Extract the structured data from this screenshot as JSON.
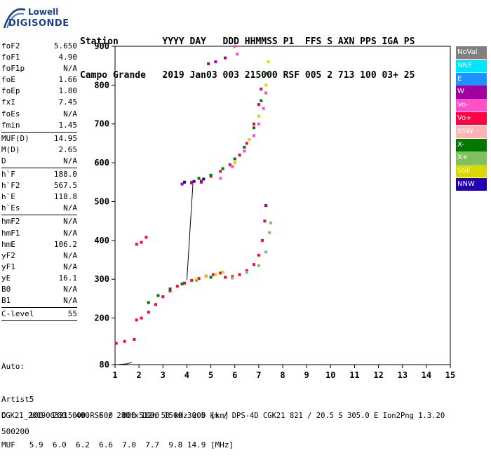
{
  "logo": {
    "line1": "Lowell",
    "line2": "DIGISONDE"
  },
  "header": {
    "line1": "Station        YYYY DAY   DDD HHMMSS P1  FFS S AXN PPS IGA PS",
    "line2": "Campo Grande   2019 Jan03 003 215000 RSF 005 2 713 100 03+ 25"
  },
  "params": [
    {
      "name": "foF2",
      "value": "5.650"
    },
    {
      "name": "foF1",
      "value": "4.90"
    },
    {
      "name": "foF1p",
      "value": "N/A"
    },
    {
      "name": "foE",
      "value": "1.66"
    },
    {
      "name": "foEp",
      "value": "1.80"
    },
    {
      "name": "fxI",
      "value": "7.45"
    },
    {
      "name": "foEs",
      "value": "N/A"
    },
    {
      "name": "fmin",
      "value": "1.45"
    },
    {
      "sep": true
    },
    {
      "name": "MUF(D)",
      "value": "14.95"
    },
    {
      "name": "M(D)",
      "value": "2.65"
    },
    {
      "name": "D",
      "value": "N/A"
    },
    {
      "sep": true
    },
    {
      "name": "h`F",
      "value": "188.0"
    },
    {
      "name": "h`F2",
      "value": "567.5"
    },
    {
      "name": "h`E",
      "value": "118.8"
    },
    {
      "name": "h`Es",
      "value": "N/A"
    },
    {
      "sep": true
    },
    {
      "name": "hmF2",
      "value": "N/A"
    },
    {
      "name": "hmF1",
      "value": "N/A"
    },
    {
      "name": "hmE",
      "value": "106.2"
    },
    {
      "name": "yF2",
      "value": "N/A"
    },
    {
      "name": "yF1",
      "value": "N/A"
    },
    {
      "name": "yE",
      "value": "16.1"
    },
    {
      "name": "B0",
      "value": "N/A"
    },
    {
      "name": "B1",
      "value": "N/A"
    },
    {
      "sep": true
    },
    {
      "name": "C-level",
      "value": "55"
    },
    {
      "sep": true
    }
  ],
  "auto": {
    "line1": "Auto:",
    "line2": "Artist5",
    "line3": "500200"
  },
  "legend": [
    {
      "label": "NoVal",
      "color": "#808080"
    },
    {
      "label": "NNE",
      "color": "#00e5ff"
    },
    {
      "label": "E",
      "color": "#1e90ff"
    },
    {
      "label": "W",
      "color": "#a000a0"
    },
    {
      "label": "Vo-",
      "color": "#ff50c8"
    },
    {
      "label": "Vo+",
      "color": "#ff0040"
    },
    {
      "label": "SSW",
      "color": "#ffb4b4"
    },
    {
      "label": "X-",
      "color": "#007800"
    },
    {
      "label": "X+",
      "color": "#80c060"
    },
    {
      "label": "SSE",
      "color": "#d8d800"
    },
    {
      "label": "NNW",
      "color": "#2000b0"
    }
  ],
  "dtable": {
    "d_row": "D     100  200  400  600  800 1000 1500 3000 [km]",
    "muf_row": "MUF   5.9  6.0  6.2  6.6  7.0  7.7  9.8 14.9 [MHz]"
  },
  "footer": "CGK21_2019003215000.RSF / 280fx512h 50 kHz 2.5 km / DPS-4D CGK21 821 / 20.5 S 305.0 E Ion2Png 1.3.20",
  "chart_data": {
    "type": "scatter",
    "xlim": [
      1,
      15
    ],
    "ylim": [
      80,
      900
    ],
    "x_ticks": [
      "1",
      "2",
      "3",
      "4",
      "5",
      "6",
      "7",
      "8",
      "9",
      "10",
      "11",
      "12",
      "13",
      "14",
      "15"
    ],
    "y_ticks": [
      "80",
      "200",
      "300",
      "400",
      "500",
      "600",
      "700",
      "800",
      "900"
    ],
    "series": [
      {
        "name": "Vo+",
        "color": "#ff0040",
        "points": [
          [
            1.9,
            195
          ],
          [
            2.1,
            200
          ],
          [
            2.4,
            215
          ],
          [
            2.7,
            235
          ],
          [
            3.0,
            255
          ],
          [
            3.3,
            270
          ],
          [
            3.6,
            282
          ],
          [
            3.9,
            290
          ],
          [
            4.2,
            297
          ],
          [
            4.5,
            302
          ],
          [
            4.8,
            308
          ],
          [
            5.1,
            312
          ],
          [
            5.4,
            316
          ],
          [
            5.6,
            305
          ],
          [
            5.9,
            307
          ],
          [
            6.2,
            312
          ],
          [
            6.5,
            322
          ],
          [
            6.8,
            338
          ],
          [
            7.0,
            362
          ],
          [
            7.15,
            400
          ],
          [
            7.25,
            450
          ],
          [
            4.2,
            550
          ],
          [
            4.6,
            553
          ],
          [
            5.0,
            565
          ],
          [
            5.4,
            578
          ],
          [
            5.8,
            595
          ],
          [
            6.2,
            620
          ],
          [
            6.5,
            650
          ],
          [
            6.8,
            700
          ],
          [
            7.0,
            750
          ],
          [
            7.1,
            790
          ]
        ]
      },
      {
        "name": "X-",
        "color": "#007800",
        "points": [
          [
            2.4,
            240
          ],
          [
            2.8,
            258
          ],
          [
            3.3,
            275
          ],
          [
            3.8,
            288
          ],
          [
            4.4,
            298
          ],
          [
            5.0,
            305
          ],
          [
            4.5,
            560
          ],
          [
            5.0,
            568
          ],
          [
            5.5,
            585
          ],
          [
            6.0,
            610
          ],
          [
            6.4,
            640
          ],
          [
            6.8,
            690
          ],
          [
            7.1,
            760
          ],
          [
            7.3,
            830
          ]
        ]
      },
      {
        "name": "X+",
        "color": "#80c060",
        "points": [
          [
            5.9,
            303
          ],
          [
            6.5,
            318
          ],
          [
            7.0,
            335
          ],
          [
            7.3,
            370
          ],
          [
            7.45,
            420
          ],
          [
            7.5,
            445
          ]
        ]
      },
      {
        "name": "SSE",
        "color": "#d8d800",
        "points": [
          [
            4.4,
            300
          ],
          [
            4.8,
            307
          ],
          [
            5.2,
            312
          ],
          [
            5.5,
            318
          ],
          [
            6.0,
            600
          ],
          [
            6.6,
            660
          ],
          [
            7.0,
            720
          ],
          [
            7.3,
            800
          ],
          [
            7.4,
            860
          ]
        ]
      },
      {
        "name": "Vo-",
        "color": "#ff50c8",
        "points": [
          [
            5.4,
            560
          ],
          [
            5.9,
            590
          ],
          [
            6.4,
            630
          ],
          [
            6.8,
            670
          ],
          [
            7.0,
            700
          ],
          [
            7.2,
            740
          ],
          [
            7.3,
            780
          ],
          [
            6.0,
            900
          ],
          [
            6.1,
            880
          ]
        ]
      },
      {
        "name": "W",
        "color": "#a000a0",
        "points": [
          [
            3.8,
            545
          ],
          [
            4.2,
            548
          ],
          [
            4.6,
            550
          ],
          [
            7.3,
            490
          ],
          [
            4.9,
            855
          ],
          [
            5.2,
            860
          ],
          [
            5.6,
            870
          ]
        ]
      },
      {
        "name": "NNW",
        "color": "#2000b0",
        "points": [
          [
            3.9,
            550
          ],
          [
            4.3,
            552
          ],
          [
            4.7,
            558
          ]
        ]
      },
      {
        "name": "Vo+ (Es)",
        "color": "#ff0040",
        "points": [
          [
            1.05,
            135
          ],
          [
            1.4,
            140
          ],
          [
            1.8,
            145
          ],
          [
            1.9,
            390
          ],
          [
            2.1,
            395
          ],
          [
            2.3,
            408
          ]
        ]
      }
    ],
    "annotations": {
      "trace_lines": [
        {
          "points": [
            [
              1.1,
              80
            ],
            [
              1.5,
              82
            ],
            [
              1.7,
              86
            ]
          ]
        },
        {
          "points": [
            [
              4.0,
              298
            ],
            [
              4.25,
              545
            ]
          ]
        }
      ]
    }
  }
}
